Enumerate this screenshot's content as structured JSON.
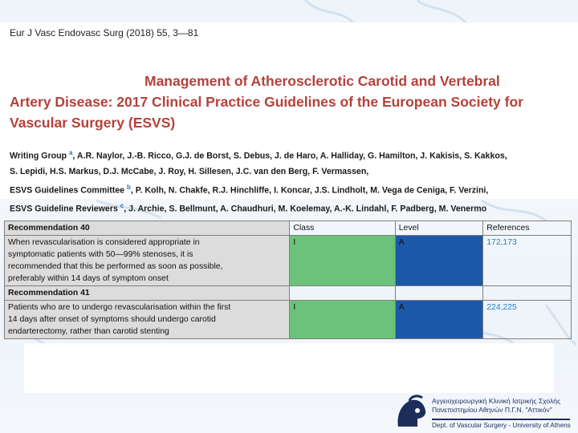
{
  "citation": "Eur J Vasc Endovasc Surg (2018) 55, 3—81",
  "title": {
    "line1": "Management of Atherosclerotic Carotid and Vertebral",
    "line2": "Artery Disease: 2017 Clinical Practice Guidelines of the European Society for",
    "line3": "Vascular Surgery (ESVS)"
  },
  "authors": {
    "writing_group_label": "Writing Group",
    "writing_group_mark": "a",
    "writing_group_line1": ", A.R. Naylor, J.-B. Ricco, G.J. de Borst, S. Debus, J. de Haro, A. Halliday, G. Hamilton, J. Kakisis, S. Kakkos,",
    "writing_group_line2": "S. Lepidi, H.S. Markus, D.J. McCabe, J. Roy, H. Sillesen, J.C. van den Berg, F. Vermassen,",
    "committee_label": "ESVS Guidelines Committee",
    "committee_mark": "b",
    "committee_names": ", P. Kolh, N. Chakfe, R.J. Hinchliffe, I. Koncar, J.S. Lindholt, M. Vega de Ceniga, F. Verzini,",
    "reviewers_label": "ESVS Guideline Reviewers",
    "reviewers_mark": "c",
    "reviewers_names": ", J. Archie, S. Bellmunt, A. Chaudhuri, M. Koelemay, A.-K. Lindahl, F. Padberg, M. Venermo"
  },
  "table": {
    "headers": {
      "class": "Class",
      "level": "Level",
      "references": "References"
    },
    "recommendations": [
      {
        "title": "Recommendation 40",
        "text": [
          "When revascularisation is considered appropriate in",
          "symptomatic patients with 50—99% stenoses, it is",
          "recommended that this be performed as soon as possible,",
          "preferably within 14 days of symptom onset"
        ],
        "class": "I",
        "level": "A",
        "references": "172,173"
      },
      {
        "title": "Recommendation 41",
        "text": [
          "Patients who are to undergo revascularisation within the first",
          "14 days after onset of symptoms should undergo carotid",
          "endarterectomy, rather than carotid stenting"
        ],
        "class": "I",
        "level": "A",
        "references": "224,225"
      }
    ],
    "colors": {
      "class_cell": "#6cc27a",
      "level_cell": "#1d58a8",
      "text_cell": "#dcdcdc",
      "reference_text": "#1f7fc5"
    }
  },
  "logo": {
    "line1": "Αγγειοχειρουργική Κλινική Ιατρικής Σχολής",
    "line2": "Πανεπιστημίου Αθηνών Π.Γ.Ν. \"Αττικόν\"",
    "dept": "Dept. of Vascular Surgery - University of Athens"
  },
  "icons": [
    "vessel-pattern-background",
    "athens-helmet-logo-icon"
  ]
}
